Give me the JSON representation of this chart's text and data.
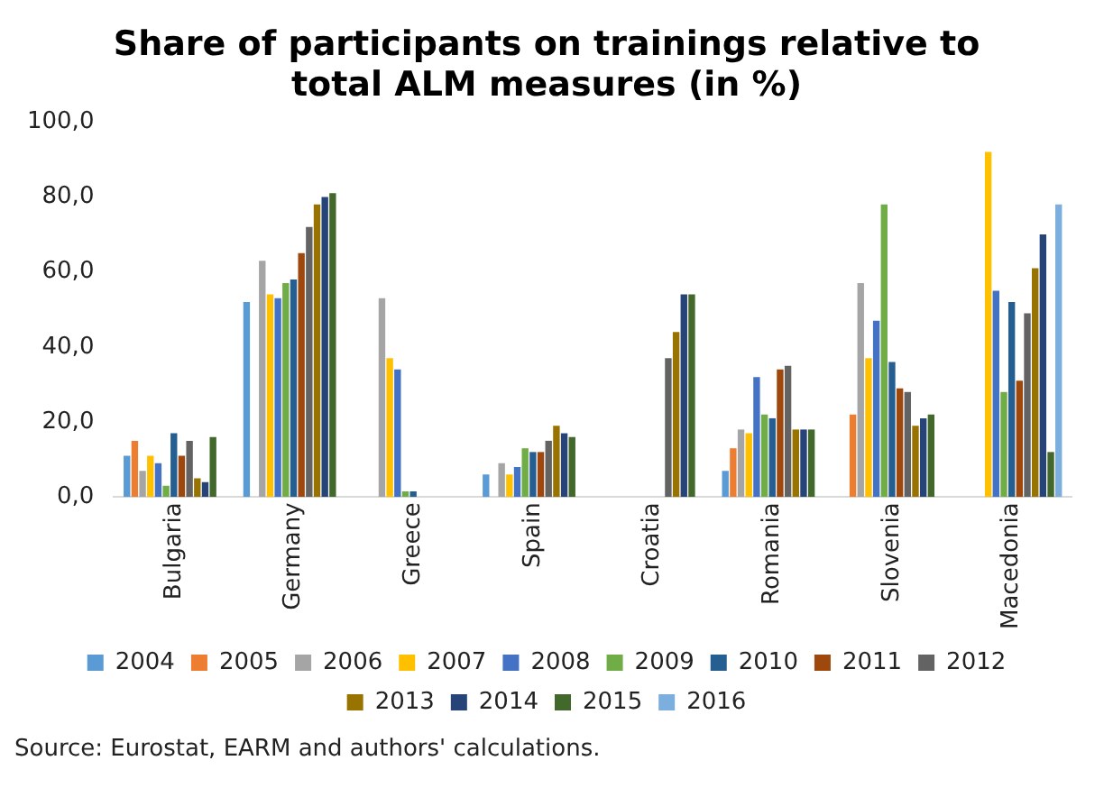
{
  "chart_data": {
    "type": "bar",
    "title": "Share of participants on trainings relative to total ALM measures (in %)",
    "categories": [
      "Bulgaria",
      "Germany",
      "Greece",
      "Spain",
      "Croatia",
      "Romania",
      "Slovenia",
      "Macedonia"
    ],
    "series": [
      {
        "name": "2004",
        "color": "#5b9bd5",
        "values": [
          11,
          52,
          null,
          6,
          null,
          7,
          null,
          null
        ]
      },
      {
        "name": "2005",
        "color": "#ed7d31",
        "values": [
          15,
          null,
          null,
          null,
          null,
          13,
          22,
          null
        ]
      },
      {
        "name": "2006",
        "color": "#a5a5a5",
        "values": [
          7,
          63,
          53,
          9,
          null,
          18,
          57,
          null
        ]
      },
      {
        "name": "2007",
        "color": "#ffc000",
        "values": [
          11,
          54,
          37,
          6,
          null,
          17,
          37,
          92
        ]
      },
      {
        "name": "2008",
        "color": "#4472c4",
        "values": [
          9,
          53,
          34,
          8,
          null,
          32,
          47,
          55
        ]
      },
      {
        "name": "2009",
        "color": "#70ad47",
        "values": [
          3,
          57,
          1.5,
          13,
          null,
          22,
          78,
          28
        ]
      },
      {
        "name": "2010",
        "color": "#255e91",
        "values": [
          17,
          58,
          1.5,
          12,
          null,
          21,
          36,
          52
        ]
      },
      {
        "name": "2011",
        "color": "#9e480e",
        "values": [
          11,
          65,
          null,
          12,
          null,
          34,
          29,
          31
        ]
      },
      {
        "name": "2012",
        "color": "#636363",
        "values": [
          15,
          72,
          null,
          15,
          37,
          35,
          28,
          49
        ]
      },
      {
        "name": "2013",
        "color": "#997300",
        "values": [
          5,
          78,
          null,
          19,
          44,
          18,
          19,
          61
        ]
      },
      {
        "name": "2014",
        "color": "#264478",
        "values": [
          4,
          80,
          null,
          17,
          54,
          18,
          21,
          70
        ]
      },
      {
        "name": "2015",
        "color": "#43682b",
        "values": [
          16,
          81,
          null,
          16,
          54,
          18,
          22,
          12
        ]
      },
      {
        "name": "2016",
        "color": "#7cafdd",
        "values": [
          null,
          null,
          null,
          null,
          null,
          null,
          null,
          78
        ]
      }
    ],
    "ylim": [
      0,
      100
    ],
    "yticks": [
      {
        "value": 0,
        "label": "0,0"
      },
      {
        "value": 20,
        "label": "20,0"
      },
      {
        "value": 40,
        "label": "40,0"
      },
      {
        "value": 60,
        "label": "60,0"
      },
      {
        "value": 80,
        "label": "80,0"
      },
      {
        "value": 100,
        "label": "100,0"
      }
    ],
    "grid": false,
    "legend": "bottom",
    "annotations": [
      "Source: Eurostat, EARM and authors' calculations."
    ]
  }
}
